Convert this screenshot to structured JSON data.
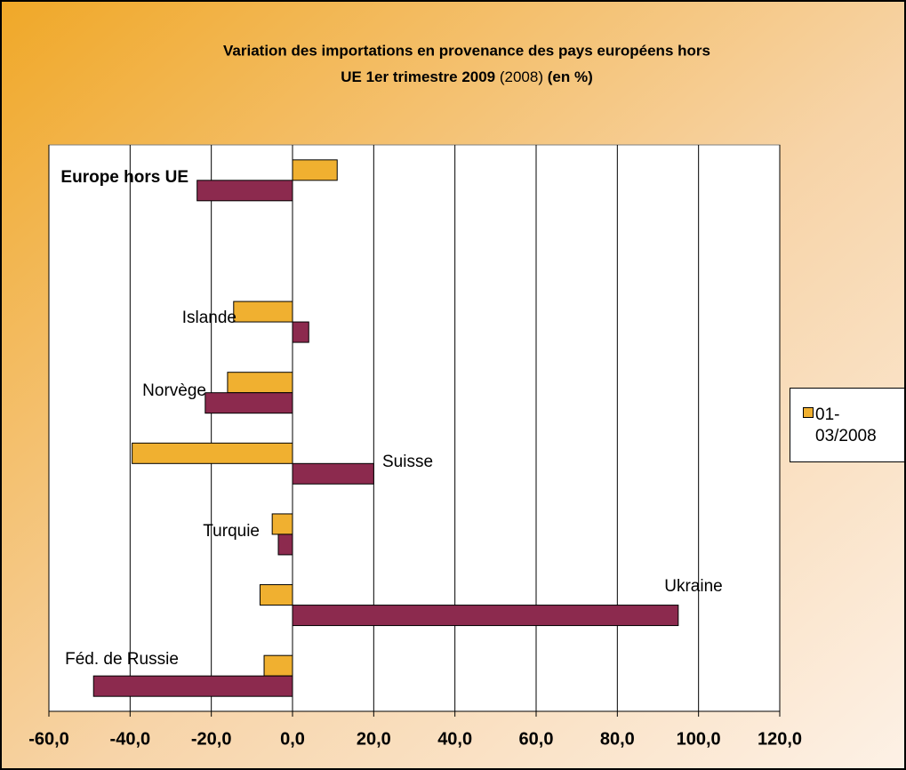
{
  "chart_data": {
    "type": "hbar",
    "title": [
      "Variation des importations en provenance des pays européens hors",
      "UE 1er trimestre 2009",
      "(2008)",
      "(en %)"
    ],
    "categories": [
      "Europe hors UE",
      null,
      "Islande",
      "Norvège",
      "Suisse",
      "Turquie",
      "Ukraine",
      "Féd. de Russie"
    ],
    "series": [
      {
        "name": "01-03/2008",
        "color": "#f0b030",
        "values": [
          11,
          null,
          -14.5,
          -16,
          -39.5,
          -5,
          -8,
          -7
        ]
      },
      {
        "color": "#8c2a4e",
        "values": [
          -23.5,
          null,
          4,
          -21.5,
          20,
          -3.5,
          95,
          -49
        ]
      }
    ],
    "xlim": [
      -60,
      120
    ],
    "xticks": [
      {
        "value": -60,
        "label": "-60,0"
      },
      {
        "value": -40,
        "label": "-40,0"
      },
      {
        "value": -20,
        "label": "-20,0"
      },
      {
        "value": 0,
        "label": "0,0"
      },
      {
        "value": 20,
        "label": "20,0"
      },
      {
        "value": 40,
        "label": "40,0"
      },
      {
        "value": 60,
        "label": "60,0"
      },
      {
        "value": 80,
        "label": "80,0"
      },
      {
        "value": 100,
        "label": "100,0"
      },
      {
        "value": 120,
        "label": "120,0"
      }
    ],
    "grid": true,
    "legend": "right"
  }
}
